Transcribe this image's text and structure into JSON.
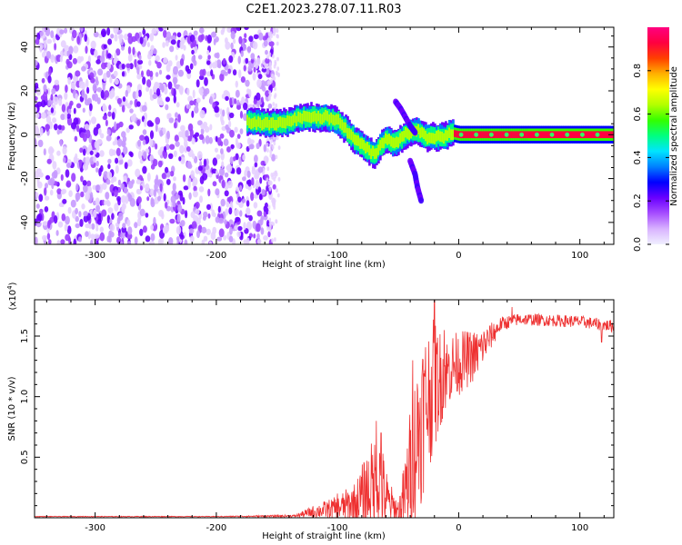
{
  "title": "C2E1.2023.278.07.11.R03",
  "chart_data": [
    {
      "type": "heatmap",
      "xlabel": "Height of straight line (km)",
      "ylabel": "Frequency (Hz)",
      "xlim": [
        -350,
        128
      ],
      "ylim": [
        -50,
        49
      ],
      "xticks": [
        "-300",
        "-200",
        "-100",
        "0",
        "100"
      ],
      "xtick_values": [
        -300,
        -200,
        -100,
        0,
        100
      ],
      "yticks": [
        "-40",
        "-20",
        "0",
        "20",
        "40"
      ],
      "ytick_values": [
        -40,
        -20,
        0,
        20,
        40
      ],
      "colorbar": {
        "label": "Normalized spectral amplitude",
        "range": [
          0,
          1
        ],
        "ticks": [
          "0.0",
          "0.2",
          "0.4",
          "0.6",
          "0.8"
        ],
        "tick_values": [
          0.0,
          0.2,
          0.4,
          0.6,
          0.8
        ],
        "colors": [
          "#f0f0ff",
          "#d9b3ff",
          "#a64dff",
          "#6a00ff",
          "#0000ff",
          "#0080ff",
          "#00e5ff",
          "#00ff80",
          "#33ff00",
          "#b3ff00",
          "#ffff00",
          "#ffb000",
          "#ff4000",
          "#ff0040",
          "#ff0080"
        ]
      },
      "noise_region": {
        "x": [
          -350,
          -152
        ],
        "y": [
          -50,
          49
        ]
      },
      "ridge": [
        {
          "x": -175,
          "y": 6
        },
        {
          "x": -160,
          "y": 5
        },
        {
          "x": -150,
          "y": 5
        },
        {
          "x": -140,
          "y": 6
        },
        {
          "x": -130,
          "y": 8
        },
        {
          "x": -120,
          "y": 8
        },
        {
          "x": -110,
          "y": 8
        },
        {
          "x": -100,
          "y": 6
        },
        {
          "x": -95,
          "y": 3
        },
        {
          "x": -90,
          "y": 0
        },
        {
          "x": -85,
          "y": -3
        },
        {
          "x": -80,
          "y": -5
        },
        {
          "x": -75,
          "y": -7
        },
        {
          "x": -70,
          "y": -9
        },
        {
          "x": -65,
          "y": -5
        },
        {
          "x": -60,
          "y": -2
        },
        {
          "x": -55,
          "y": -4
        },
        {
          "x": -50,
          "y": -3
        },
        {
          "x": -45,
          "y": 0
        },
        {
          "x": -40,
          "y": 1
        },
        {
          "x": -35,
          "y": 2
        },
        {
          "x": -28,
          "y": -1
        },
        {
          "x": -20,
          "y": -1
        },
        {
          "x": -12,
          "y": -1
        },
        {
          "x": -8,
          "y": 1
        },
        {
          "x": 0,
          "y": 0
        },
        {
          "x": 50,
          "y": 0
        },
        {
          "x": 100,
          "y": 0
        },
        {
          "x": 128,
          "y": 0
        }
      ],
      "branch_upper": [
        {
          "x": -52,
          "y": 15
        },
        {
          "x": -48,
          "y": 12
        },
        {
          "x": -44,
          "y": 8
        },
        {
          "x": -40,
          "y": 4
        },
        {
          "x": -36,
          "y": 1
        }
      ],
      "branch_lower": [
        {
          "x": -40,
          "y": -12
        },
        {
          "x": -36,
          "y": -18
        },
        {
          "x": -34,
          "y": -24
        },
        {
          "x": -31,
          "y": -30
        }
      ]
    },
    {
      "type": "line",
      "xlabel": "Height of straight line (km)",
      "ylabel": "SNR (10 * v/v)",
      "y_multiplier": "(x10",
      "y_multiplier_exp": "4",
      "y_multiplier_close": ")",
      "xlim": [
        -350,
        128
      ],
      "ylim": [
        0,
        1.8
      ],
      "xticks": [
        "-300",
        "-200",
        "-100",
        "0",
        "100"
      ],
      "xtick_values": [
        -300,
        -200,
        -100,
        0,
        100
      ],
      "yticks": [
        "0.5",
        "1.0",
        "1.5"
      ],
      "ytick_values": [
        0.5,
        1.0,
        1.5
      ],
      "line_color": "#ee3030",
      "profile": [
        {
          "x": -350,
          "base": 0.01,
          "spread": 0.003
        },
        {
          "x": -200,
          "base": 0.01,
          "spread": 0.003
        },
        {
          "x": -135,
          "base": 0.015,
          "spread": 0.01
        },
        {
          "x": -120,
          "base": 0.05,
          "spread": 0.05
        },
        {
          "x": -100,
          "base": 0.08,
          "spread": 0.1
        },
        {
          "x": -85,
          "base": 0.12,
          "spread": 0.18
        },
        {
          "x": -75,
          "base": 0.22,
          "spread": 0.35
        },
        {
          "x": -66,
          "base": 0.3,
          "spread": 0.45
        },
        {
          "x": -58,
          "base": 0.12,
          "spread": 0.2
        },
        {
          "x": -50,
          "base": 0.05,
          "spread": 0.1
        },
        {
          "x": -45,
          "base": 0.15,
          "spread": 0.3
        },
        {
          "x": -38,
          "base": 0.5,
          "spread": 0.6
        },
        {
          "x": -30,
          "base": 0.85,
          "spread": 0.7
        },
        {
          "x": -25,
          "base": 1.0,
          "spread": 0.6
        },
        {
          "x": -20,
          "base": 1.1,
          "spread": 0.55
        },
        {
          "x": -15,
          "base": 1.15,
          "spread": 0.4
        },
        {
          "x": -10,
          "base": 1.2,
          "spread": 0.3
        },
        {
          "x": -5,
          "base": 1.25,
          "spread": 0.28
        },
        {
          "x": 5,
          "base": 1.3,
          "spread": 0.25
        },
        {
          "x": 15,
          "base": 1.35,
          "spread": 0.2
        },
        {
          "x": 25,
          "base": 1.48,
          "spread": 0.12
        },
        {
          "x": 35,
          "base": 1.6,
          "spread": 0.06
        },
        {
          "x": 50,
          "base": 1.64,
          "spread": 0.05
        },
        {
          "x": 75,
          "base": 1.63,
          "spread": 0.05
        },
        {
          "x": 100,
          "base": 1.62,
          "spread": 0.05
        },
        {
          "x": 128,
          "base": 1.58,
          "spread": 0.05
        }
      ],
      "peaks": [
        {
          "x": -100,
          "y": 0.2
        },
        {
          "x": -68,
          "y": 0.8
        },
        {
          "x": -64,
          "y": 0.7
        },
        {
          "x": -38,
          "y": 1.3
        },
        {
          "x": -20,
          "y": 1.8
        },
        {
          "x": -12,
          "y": 1.55
        },
        {
          "x": 44,
          "y": 1.74
        },
        {
          "x": 118,
          "y": 1.45
        }
      ]
    }
  ]
}
